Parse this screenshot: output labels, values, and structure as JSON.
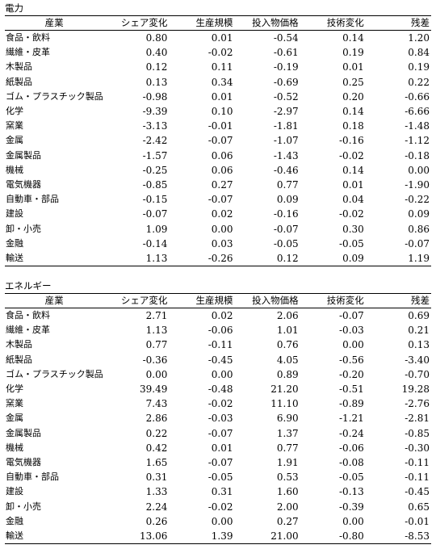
{
  "headers": [
    "産業",
    "シェア変化",
    "生産規模",
    "投入物価格",
    "技術変化",
    "残差"
  ],
  "sections": [
    {
      "title": "電力",
      "rows": [
        [
          "食品・飲料",
          "0.80",
          "0.01",
          "-0.54",
          "0.14",
          "1.20"
        ],
        [
          "繊維・皮革",
          "0.40",
          "-0.02",
          "-0.61",
          "0.19",
          "0.84"
        ],
        [
          "木製品",
          "0.12",
          "0.11",
          "-0.19",
          "0.01",
          "0.19"
        ],
        [
          "紙製品",
          "0.13",
          "0.34",
          "-0.69",
          "0.25",
          "0.22"
        ],
        [
          "ゴム・プラスチック製品",
          "-0.98",
          "0.01",
          "-0.52",
          "0.20",
          "-0.66"
        ],
        [
          "化学",
          "-9.39",
          "0.10",
          "-2.97",
          "0.14",
          "-6.66"
        ],
        [
          "窯業",
          "-3.13",
          "-0.01",
          "-1.81",
          "0.18",
          "-1.48"
        ],
        [
          "金属",
          "-2.42",
          "-0.07",
          "-1.07",
          "-0.16",
          "-1.12"
        ],
        [
          "金属製品",
          "-1.57",
          "0.06",
          "-1.43",
          "-0.02",
          "-0.18"
        ],
        [
          "機械",
          "-0.25",
          "0.06",
          "-0.46",
          "0.14",
          "0.00"
        ],
        [
          "電気機器",
          "-0.85",
          "0.27",
          "0.77",
          "0.01",
          "-1.90"
        ],
        [
          "自動車・部品",
          "-0.15",
          "-0.07",
          "0.09",
          "0.04",
          "-0.22"
        ],
        [
          "建設",
          "-0.07",
          "0.02",
          "-0.16",
          "-0.02",
          "0.09"
        ],
        [
          "卸・小売",
          "1.09",
          "0.00",
          "-0.07",
          "0.30",
          "0.86"
        ],
        [
          "金融",
          "-0.14",
          "0.03",
          "-0.05",
          "-0.05",
          "-0.07"
        ],
        [
          "輸送",
          "1.13",
          "-0.26",
          "0.12",
          "0.09",
          "1.19"
        ]
      ]
    },
    {
      "title": "エネルギー",
      "rows": [
        [
          "食品・飲料",
          "2.71",
          "0.02",
          "2.06",
          "-0.07",
          "0.69"
        ],
        [
          "繊維・皮革",
          "1.13",
          "-0.06",
          "1.01",
          "-0.03",
          "0.21"
        ],
        [
          "木製品",
          "0.77",
          "-0.11",
          "0.76",
          "0.00",
          "0.13"
        ],
        [
          "紙製品",
          "-0.36",
          "-0.45",
          "4.05",
          "-0.56",
          "-3.40"
        ],
        [
          "ゴム・プラスチック製品",
          "0.00",
          "0.00",
          "0.89",
          "-0.20",
          "-0.70"
        ],
        [
          "化学",
          "39.49",
          "-0.48",
          "21.20",
          "-0.51",
          "19.28"
        ],
        [
          "窯業",
          "7.43",
          "-0.02",
          "11.10",
          "-0.89",
          "-2.76"
        ],
        [
          "金属",
          "2.86",
          "-0.03",
          "6.90",
          "-1.21",
          "-2.81"
        ],
        [
          "金属製品",
          "0.22",
          "-0.07",
          "1.37",
          "-0.24",
          "-0.85"
        ],
        [
          "機械",
          "0.42",
          "0.01",
          "0.77",
          "-0.06",
          "-0.30"
        ],
        [
          "電気機器",
          "1.65",
          "-0.07",
          "1.91",
          "-0.08",
          "-0.11"
        ],
        [
          "自動車・部品",
          "0.31",
          "-0.05",
          "0.53",
          "-0.05",
          "-0.11"
        ],
        [
          "建設",
          "1.33",
          "0.31",
          "1.60",
          "-0.13",
          "-0.45"
        ],
        [
          "卸・小売",
          "2.24",
          "-0.02",
          "2.00",
          "-0.39",
          "0.65"
        ],
        [
          "金融",
          "0.26",
          "0.00",
          "0.27",
          "0.00",
          "-0.01"
        ],
        [
          "輸送",
          "13.06",
          "1.39",
          "21.00",
          "-0.80",
          "-8.53"
        ]
      ]
    }
  ]
}
